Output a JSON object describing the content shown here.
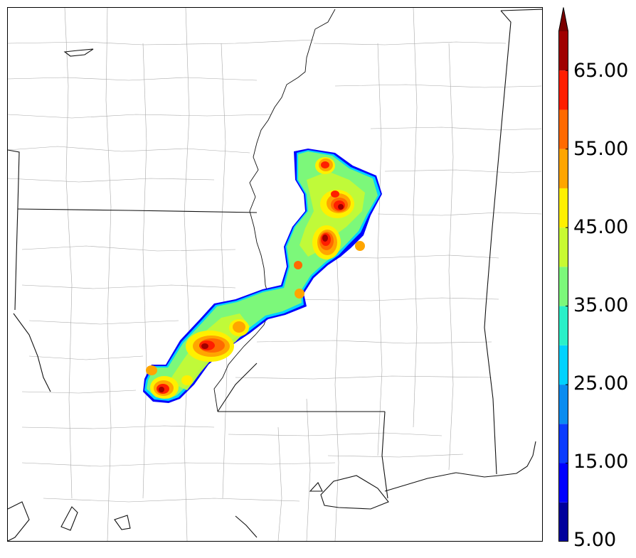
{
  "colorbar": {
    "tick_labels": [
      "65.00",
      "55.00",
      "45.00",
      "35.00",
      "25.00",
      "15.00",
      "5.00"
    ],
    "levels": [
      5,
      10,
      15,
      20,
      25,
      30,
      35,
      40,
      45,
      50,
      55,
      60,
      65,
      70
    ],
    "extend": "max",
    "colors": [
      "#00009c",
      "#0000ff",
      "#0a3cff",
      "#0a8cf0",
      "#00d2ff",
      "#2af0c8",
      "#7cf87a",
      "#c8fa32",
      "#fff000",
      "#ffa500",
      "#ff6a00",
      "#ff1e00",
      "#a00000"
    ],
    "extend_color": "#7a0000"
  },
  "chart_data": {
    "type": "heatmap",
    "title": "",
    "colorbar_range": [
      5,
      70
    ],
    "colorbar_ticks": [
      5,
      15,
      25,
      35,
      45,
      55,
      65
    ],
    "extend": "max",
    "description_values": "Contoured reflectivity-like field; peak cores exceed 65, embedded in a 35-45 swath with a thin 5-25 outer fringe."
  }
}
